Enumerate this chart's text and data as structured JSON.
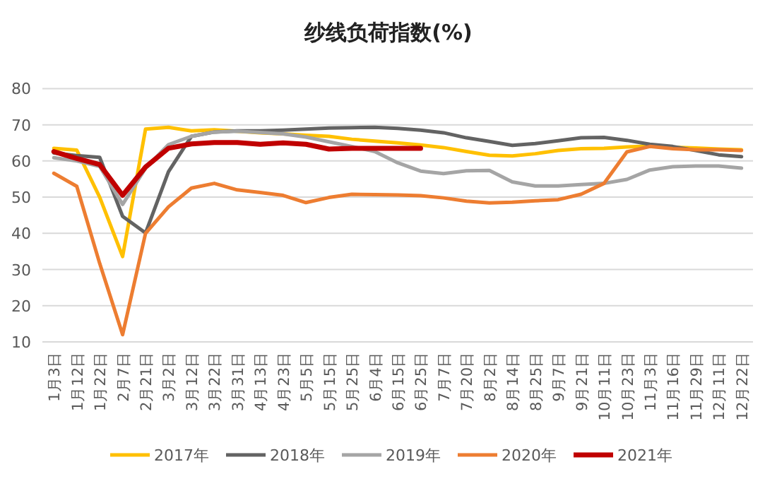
{
  "chart_data": {
    "type": "line",
    "title": "纱线负荷指数(%)",
    "categories": [
      "1月3日",
      "1月12日",
      "1月22日",
      "2月7日",
      "2月21日",
      "3月2日",
      "3月12日",
      "3月22日",
      "3月31日",
      "4月13日",
      "4月23日",
      "5月5日",
      "5月15日",
      "5月25日",
      "6月4日",
      "6月15日",
      "6月25日",
      "7月7日",
      "7月20日",
      "8月2日",
      "8月14日",
      "8月25日",
      "9月7日",
      "9月21日",
      "10月11日",
      "10月23日",
      "11月3日",
      "11月16日",
      "11月29日",
      "12月11日",
      "12月22日"
    ],
    "series": [
      {
        "name": "2017年",
        "color": "#ffc000",
        "values": [
          63.5,
          63,
          50,
          33.6,
          68.8,
          69.3,
          68.3,
          68.6,
          68.2,
          67.8,
          67.5,
          67.1,
          66.8,
          66,
          65.5,
          65,
          64.4,
          63.7,
          62.6,
          61.6,
          61.4,
          62,
          62.9,
          63.4,
          63.5,
          63.9,
          64.1,
          63.8,
          63.6,
          63.3,
          63.1
        ]
      },
      {
        "name": "2018年",
        "color": "#636363",
        "values": [
          62.2,
          61.5,
          61,
          44.7,
          40.1,
          57,
          66.8,
          68,
          68.3,
          68.3,
          68.5,
          68.8,
          69.1,
          69.2,
          69.3,
          69,
          68.5,
          67.8,
          66.4,
          65.4,
          64.3,
          64.8,
          65.6,
          66.4,
          66.5,
          65.7,
          64.6,
          64,
          62.9,
          61.7,
          61.2
        ]
      },
      {
        "name": "2019年",
        "color": "#a5a5a5",
        "values": [
          60.9,
          60,
          58.5,
          48,
          58,
          64.5,
          66.8,
          68,
          68.2,
          67.9,
          67.5,
          66.6,
          65.3,
          64,
          62.6,
          59.5,
          57.2,
          56.5,
          57.3,
          57.4,
          54.2,
          53.1,
          53.1,
          53.5,
          53.8,
          54.9,
          57.5,
          58.4,
          58.6,
          58.6,
          58
        ]
      },
      {
        "name": "2020年",
        "color": "#ed7d31",
        "values": [
          56.6,
          53,
          31.7,
          12,
          40,
          47.3,
          52.5,
          53.8,
          52,
          51.3,
          50.5,
          48.5,
          49.9,
          50.8,
          50.7,
          50.6,
          50.4,
          49.8,
          48.9,
          48.4,
          48.6,
          49,
          49.3,
          50.8,
          53.8,
          62.5,
          64,
          63.4,
          63.1,
          63.1,
          62.9
        ]
      },
      {
        "name": "2021年",
        "color": "#c00000",
        "values": [
          62.6,
          60.7,
          59,
          50.5,
          58.3,
          63.5,
          64.7,
          65.1,
          65.1,
          64.6,
          65,
          64.6,
          63.3,
          63.5,
          63.5,
          63.5,
          63.5,
          null,
          null,
          null,
          null,
          null,
          null,
          null,
          null,
          null,
          null,
          null,
          null,
          null,
          null
        ]
      }
    ],
    "ylim": [
      10,
      80
    ],
    "yticks": [
      10,
      20,
      30,
      40,
      50,
      60,
      70,
      80
    ],
    "grid": "y",
    "legend": "bottom"
  }
}
